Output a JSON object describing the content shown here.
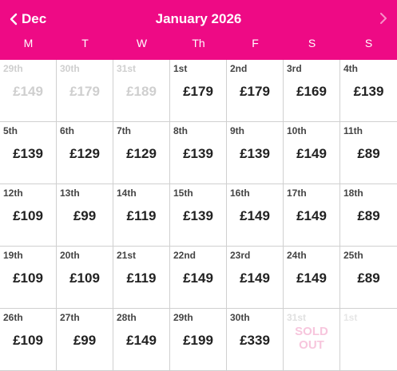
{
  "header": {
    "prev_label": "Dec",
    "title": "January 2026",
    "accent": "#ee0a85"
  },
  "weekdays": [
    "M",
    "T",
    "W",
    "Th",
    "F",
    "S",
    "S"
  ],
  "sold_out_label_line1": "SOLD",
  "sold_out_label_line2": "OUT",
  "weeks": [
    [
      {
        "day": "29th",
        "price": "£149",
        "state": "muted"
      },
      {
        "day": "30th",
        "price": "£179",
        "state": "muted"
      },
      {
        "day": "31st",
        "price": "£189",
        "state": "muted"
      },
      {
        "day": "1st",
        "price": "£179",
        "state": "normal"
      },
      {
        "day": "2nd",
        "price": "£179",
        "state": "normal"
      },
      {
        "day": "3rd",
        "price": "£169",
        "state": "normal"
      },
      {
        "day": "4th",
        "price": "£139",
        "state": "normal"
      }
    ],
    [
      {
        "day": "5th",
        "price": "£139",
        "state": "normal"
      },
      {
        "day": "6th",
        "price": "£129",
        "state": "normal"
      },
      {
        "day": "7th",
        "price": "£129",
        "state": "normal"
      },
      {
        "day": "8th",
        "price": "£139",
        "state": "normal"
      },
      {
        "day": "9th",
        "price": "£139",
        "state": "normal"
      },
      {
        "day": "10th",
        "price": "£149",
        "state": "normal"
      },
      {
        "day": "11th",
        "price": "£89",
        "state": "normal"
      }
    ],
    [
      {
        "day": "12th",
        "price": "£109",
        "state": "normal"
      },
      {
        "day": "13th",
        "price": "£99",
        "state": "normal"
      },
      {
        "day": "14th",
        "price": "£119",
        "state": "normal"
      },
      {
        "day": "15th",
        "price": "£139",
        "state": "normal"
      },
      {
        "day": "16th",
        "price": "£149",
        "state": "normal"
      },
      {
        "day": "17th",
        "price": "£149",
        "state": "normal"
      },
      {
        "day": "18th",
        "price": "£89",
        "state": "normal"
      }
    ],
    [
      {
        "day": "19th",
        "price": "£109",
        "state": "normal"
      },
      {
        "day": "20th",
        "price": "£109",
        "state": "normal"
      },
      {
        "day": "21st",
        "price": "£119",
        "state": "normal"
      },
      {
        "day": "22nd",
        "price": "£149",
        "state": "normal"
      },
      {
        "day": "23rd",
        "price": "£149",
        "state": "normal"
      },
      {
        "day": "24th",
        "price": "£149",
        "state": "normal"
      },
      {
        "day": "25th",
        "price": "£89",
        "state": "normal"
      }
    ],
    [
      {
        "day": "26th",
        "price": "£109",
        "state": "normal"
      },
      {
        "day": "27th",
        "price": "£99",
        "state": "normal"
      },
      {
        "day": "28th",
        "price": "£149",
        "state": "normal"
      },
      {
        "day": "29th",
        "price": "£199",
        "state": "normal"
      },
      {
        "day": "30th",
        "price": "£339",
        "state": "normal"
      },
      {
        "day": "31st",
        "price": "",
        "state": "soldout"
      },
      {
        "day": "1st",
        "price": "",
        "state": "empty"
      }
    ]
  ]
}
